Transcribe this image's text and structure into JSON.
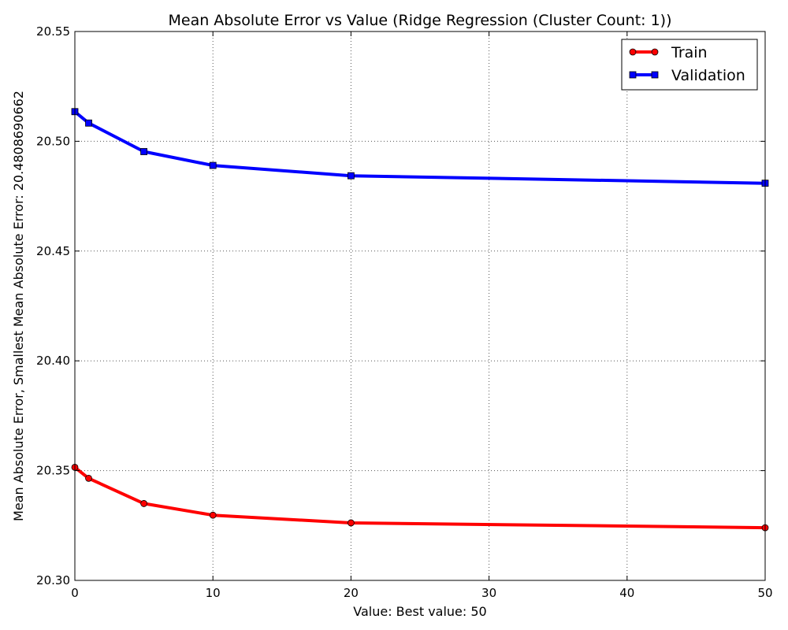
{
  "chart_data": {
    "type": "line",
    "title": "Mean Absolute Error vs Value (Ridge Regression (Cluster Count: 1))",
    "xlabel": "Value: Best value: 50",
    "ylabel": "Mean Absolute Error, Smallest Mean Absolute Error: 20.4808690662",
    "xlim": [
      0,
      50
    ],
    "ylim": [
      20.3,
      20.55
    ],
    "x_ticks": [
      0,
      10,
      20,
      30,
      40,
      50
    ],
    "x_tick_labels": [
      "0",
      "10",
      "20",
      "30",
      "40",
      "50"
    ],
    "y_ticks": [
      20.3,
      20.35,
      20.4,
      20.45,
      20.5,
      20.55
    ],
    "y_tick_labels": [
      "20.30",
      "20.35",
      "20.40",
      "20.45",
      "20.50",
      "20.55"
    ],
    "grid": true,
    "legend_position": "top-right",
    "x": [
      0,
      1,
      5,
      10,
      20,
      50
    ],
    "series": [
      {
        "name": "Train",
        "color": "#ff0000",
        "marker": "circle",
        "values": [
          20.3515,
          20.3465,
          20.335,
          20.3297,
          20.3262,
          20.324
        ]
      },
      {
        "name": "Validation",
        "color": "#0000ff",
        "marker": "square",
        "values": [
          20.5135,
          20.5083,
          20.4953,
          20.489,
          20.4843,
          20.4809
        ]
      }
    ]
  }
}
